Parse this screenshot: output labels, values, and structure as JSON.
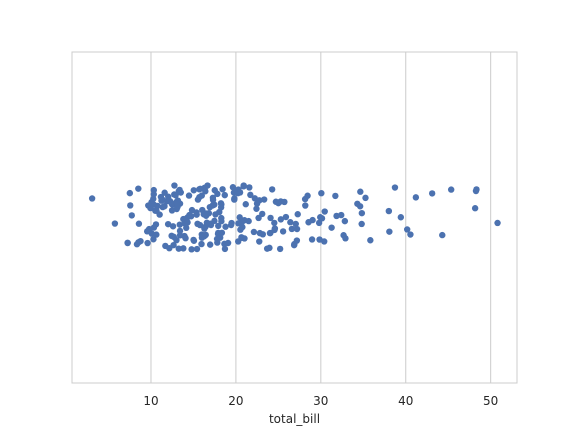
{
  "chart_data": {
    "type": "strip",
    "orientation": "horizontal",
    "xlabel": "total_bill",
    "color": "#4c72b0",
    "grid": true,
    "xlim": [
      0.7,
      53.1
    ],
    "xticks": [
      10,
      20,
      30,
      40,
      50
    ],
    "values": [
      16.99,
      10.34,
      21.01,
      23.68,
      24.59,
      25.29,
      8.77,
      26.88,
      15.04,
      14.78,
      10.27,
      35.26,
      15.42,
      18.43,
      14.83,
      21.58,
      10.33,
      16.29,
      16.97,
      20.65,
      17.92,
      20.29,
      15.77,
      39.42,
      19.82,
      17.81,
      13.37,
      12.69,
      21.7,
      19.65,
      9.55,
      18.35,
      15.06,
      20.69,
      17.78,
      24.06,
      16.31,
      16.93,
      18.69,
      31.27,
      16.04,
      17.46,
      13.94,
      9.68,
      30.4,
      18.29,
      22.23,
      32.4,
      28.55,
      18.04,
      12.54,
      10.29,
      34.81,
      9.94,
      25.56,
      19.49,
      38.01,
      26.41,
      11.24,
      48.27,
      20.29,
      13.81,
      11.02,
      18.29,
      17.59,
      20.08,
      16.45,
      3.07,
      20.23,
      15.01,
      12.02,
      17.07,
      26.86,
      25.28,
      14.73,
      10.51,
      17.92,
      27.2,
      22.76,
      17.29,
      19.44,
      16.66,
      10.07,
      32.68,
      15.98,
      34.83,
      13.03,
      18.28,
      24.71,
      21.16,
      28.97,
      22.49,
      5.75,
      16.32,
      22.75,
      40.17,
      27.28,
      12.03,
      21.01,
      12.46,
      11.35,
      15.38,
      44.3,
      22.42,
      20.92,
      15.36,
      20.49,
      25.21,
      18.24,
      14.31,
      14.0,
      7.25,
      38.07,
      23.95,
      25.71,
      17.31,
      29.93,
      10.65,
      12.43,
      24.08,
      11.69,
      13.42,
      14.26,
      15.95,
      12.48,
      29.8,
      8.52,
      14.52,
      11.38,
      22.82,
      19.08,
      20.27,
      11.17,
      12.26,
      18.26,
      8.51,
      10.33,
      14.15,
      16.0,
      13.16,
      17.47,
      34.3,
      41.19,
      27.05,
      16.43,
      8.35,
      18.64,
      11.87,
      9.78,
      7.51,
      14.07,
      13.13,
      17.26,
      24.55,
      19.77,
      29.85,
      48.17,
      25.0,
      13.39,
      16.49,
      21.5,
      12.66,
      16.21,
      13.81,
      17.51,
      24.52,
      20.76,
      31.71,
      10.59,
      10.63,
      50.81,
      15.81,
      7.25,
      31.85,
      16.82,
      32.9,
      17.89,
      14.48,
      9.6,
      34.63,
      34.65,
      23.33,
      45.35,
      23.17,
      40.55,
      20.69,
      20.9,
      30.46,
      18.15,
      23.1,
      15.69,
      19.81,
      28.44,
      15.48,
      16.58,
      7.56,
      10.34,
      43.11,
      13.0,
      13.51,
      18.71,
      12.74,
      13.0,
      16.4,
      20.53,
      16.47,
      26.59,
      38.73,
      24.27,
      12.76,
      30.06,
      25.89,
      48.33,
      13.27,
      28.17,
      12.9,
      28.15,
      11.59,
      7.74,
      30.14,
      12.16,
      13.42,
      8.58,
      15.98,
      13.42,
      16.27,
      10.09,
      20.45,
      13.28,
      22.12,
      24.01,
      15.69,
      11.61,
      10.77,
      15.53,
      10.07,
      12.6,
      32.83,
      35.83,
      29.03,
      27.18,
      22.67,
      17.82,
      18.78
    ]
  }
}
